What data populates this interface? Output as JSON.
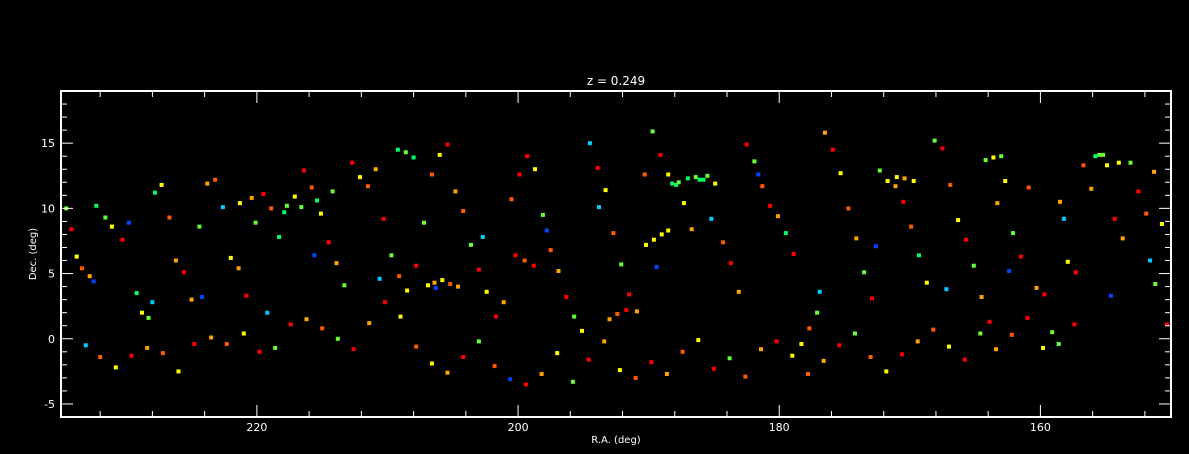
{
  "chart_data": {
    "type": "scatter",
    "title": "z = 0.249",
    "xlabel": "R.A. (deg)",
    "ylabel": "Dec. (deg)",
    "xlim": [
      235,
      150
    ],
    "ylim": [
      -6,
      19
    ],
    "x_ticks": [
      220,
      200,
      180,
      160
    ],
    "x_tick_labels": [
      "220",
      "200",
      "180",
      "160"
    ],
    "y_ticks": [
      -5,
      0,
      5,
      10,
      15
    ],
    "y_tick_labels": [
      "-5",
      "0",
      "5",
      "10",
      "15"
    ],
    "background": "#000000",
    "axis_color": "#ffffff",
    "point_colors": [
      "#ff0000",
      "#ff5a00",
      "#ffa500",
      "#ffff00",
      "#66ff33",
      "#00ff66",
      "#00ccff",
      "#0044ff",
      "#6600cc"
    ],
    "points": [
      [
        234.6,
        10.0,
        4
      ],
      [
        234.2,
        8.4,
        0
      ],
      [
        233.8,
        6.3,
        3
      ],
      [
        233.4,
        5.4,
        1
      ],
      [
        232.8,
        4.8,
        2
      ],
      [
        232.3,
        10.2,
        5
      ],
      [
        231.6,
        9.3,
        4
      ],
      [
        231.1,
        8.6,
        3
      ],
      [
        230.3,
        7.6,
        0
      ],
      [
        229.8,
        8.9,
        7
      ],
      [
        229.2,
        3.5,
        5
      ],
      [
        228.8,
        2.0,
        3
      ],
      [
        228.3,
        1.6,
        4
      ],
      [
        227.8,
        11.2,
        5
      ],
      [
        227.3,
        11.8,
        3
      ],
      [
        226.7,
        9.3,
        1
      ],
      [
        226.2,
        6.0,
        2
      ],
      [
        225.6,
        5.1,
        0
      ],
      [
        225.0,
        3.0,
        2
      ],
      [
        224.4,
        8.6,
        4
      ],
      [
        223.8,
        11.9,
        2
      ],
      [
        223.2,
        12.2,
        1
      ],
      [
        222.6,
        10.1,
        6
      ],
      [
        222.0,
        6.2,
        3
      ],
      [
        221.4,
        5.4,
        2
      ],
      [
        220.8,
        3.3,
        0
      ],
      [
        220.1,
        8.9,
        4
      ],
      [
        219.5,
        11.1,
        0
      ],
      [
        218.9,
        10.0,
        1
      ],
      [
        218.3,
        7.8,
        5
      ],
      [
        217.7,
        10.2,
        4
      ],
      [
        217.1,
        10.9,
        3
      ],
      [
        216.4,
        12.9,
        0
      ],
      [
        215.8,
        11.6,
        1
      ],
      [
        215.1,
        9.6,
        3
      ],
      [
        214.5,
        7.4,
        0
      ],
      [
        213.9,
        5.8,
        2
      ],
      [
        213.3,
        4.1,
        4
      ],
      [
        212.7,
        13.5,
        0
      ],
      [
        212.1,
        12.4,
        3
      ],
      [
        211.5,
        11.7,
        1
      ],
      [
        210.9,
        13.0,
        2
      ],
      [
        210.3,
        9.2,
        0
      ],
      [
        209.7,
        6.4,
        4
      ],
      [
        209.1,
        4.8,
        1
      ],
      [
        208.5,
        3.7,
        3
      ],
      [
        207.8,
        5.6,
        0
      ],
      [
        207.2,
        8.9,
        4
      ],
      [
        206.6,
        12.6,
        1
      ],
      [
        206.0,
        14.1,
        3
      ],
      [
        205.4,
        14.9,
        0
      ],
      [
        204.8,
        11.3,
        2
      ],
      [
        204.2,
        9.8,
        1
      ],
      [
        203.6,
        7.2,
        4
      ],
      [
        203.0,
        5.3,
        0
      ],
      [
        202.4,
        3.6,
        3
      ],
      [
        201.7,
        1.7,
        0
      ],
      [
        201.1,
        2.8,
        2
      ],
      [
        200.5,
        10.7,
        1
      ],
      [
        199.9,
        12.6,
        0
      ],
      [
        199.3,
        14.0,
        0
      ],
      [
        198.7,
        13.0,
        3
      ],
      [
        198.1,
        9.5,
        4
      ],
      [
        197.5,
        6.8,
        1
      ],
      [
        196.9,
        5.2,
        2
      ],
      [
        196.3,
        3.2,
        0
      ],
      [
        195.7,
        1.7,
        4
      ],
      [
        195.1,
        0.6,
        3
      ],
      [
        194.5,
        15.0,
        6
      ],
      [
        193.9,
        13.1,
        0
      ],
      [
        193.3,
        11.4,
        3
      ],
      [
        192.7,
        8.1,
        1
      ],
      [
        192.1,
        5.7,
        4
      ],
      [
        191.5,
        3.4,
        0
      ],
      [
        190.9,
        2.1,
        2
      ],
      [
        190.3,
        12.6,
        1
      ],
      [
        189.7,
        15.9,
        4
      ],
      [
        189.1,
        14.1,
        0
      ],
      [
        188.5,
        12.6,
        3
      ],
      [
        187.9,
        11.8,
        5
      ],
      [
        187.3,
        10.4,
        3
      ],
      [
        186.7,
        8.4,
        2
      ],
      [
        186.1,
        12.2,
        5
      ],
      [
        185.5,
        12.5,
        4
      ],
      [
        184.9,
        11.9,
        3
      ],
      [
        184.3,
        7.4,
        1
      ],
      [
        183.7,
        5.8,
        0
      ],
      [
        183.1,
        3.6,
        2
      ],
      [
        182.5,
        14.9,
        0
      ],
      [
        181.9,
        13.6,
        4
      ],
      [
        181.3,
        11.7,
        1
      ],
      [
        180.7,
        10.2,
        0
      ],
      [
        180.1,
        9.4,
        2
      ],
      [
        179.5,
        8.1,
        5
      ],
      [
        178.9,
        6.5,
        0
      ],
      [
        178.3,
        -0.4,
        3
      ],
      [
        177.7,
        0.8,
        1
      ],
      [
        177.1,
        2.0,
        4
      ],
      [
        176.5,
        15.8,
        2
      ],
      [
        175.9,
        14.5,
        0
      ],
      [
        175.3,
        12.7,
        3
      ],
      [
        174.7,
        10.0,
        1
      ],
      [
        174.1,
        7.7,
        2
      ],
      [
        173.5,
        5.1,
        4
      ],
      [
        172.9,
        3.1,
        0
      ],
      [
        172.3,
        12.9,
        4
      ],
      [
        171.7,
        12.1,
        3
      ],
      [
        171.1,
        11.7,
        2
      ],
      [
        170.5,
        10.5,
        0
      ],
      [
        169.9,
        8.6,
        1
      ],
      [
        169.3,
        6.4,
        5
      ],
      [
        168.7,
        4.3,
        3
      ],
      [
        168.1,
        15.2,
        4
      ],
      [
        167.5,
        14.6,
        0
      ],
      [
        166.9,
        11.8,
        1
      ],
      [
        166.3,
        9.1,
        3
      ],
      [
        165.7,
        7.6,
        0
      ],
      [
        165.1,
        5.6,
        4
      ],
      [
        164.5,
        3.2,
        2
      ],
      [
        163.9,
        1.3,
        0
      ],
      [
        163.3,
        10.4,
        2
      ],
      [
        162.7,
        12.1,
        3
      ],
      [
        162.1,
        8.1,
        4
      ],
      [
        161.5,
        6.3,
        0
      ],
      [
        160.9,
        11.6,
        1
      ],
      [
        160.3,
        3.9,
        2
      ],
      [
        159.7,
        3.4,
        0
      ],
      [
        159.1,
        0.5,
        4
      ],
      [
        158.5,
        10.5,
        2
      ],
      [
        157.9,
        5.9,
        3
      ],
      [
        157.3,
        5.1,
        0
      ],
      [
        156.7,
        13.3,
        1
      ],
      [
        156.1,
        11.5,
        2
      ],
      [
        155.5,
        14.1,
        4
      ],
      [
        154.9,
        13.3,
        3
      ],
      [
        154.3,
        9.2,
        0
      ],
      [
        153.7,
        7.7,
        2
      ],
      [
        153.1,
        13.5,
        4
      ],
      [
        152.5,
        11.3,
        0
      ],
      [
        151.9,
        9.6,
        1
      ],
      [
        151.3,
        12.8,
        2
      ],
      [
        150.7,
        8.8,
        3
      ],
      [
        150.3,
        1.1,
        0
      ],
      [
        151.2,
        4.2,
        4
      ],
      [
        233.1,
        -0.5,
        6
      ],
      [
        232.0,
        -1.4,
        1
      ],
      [
        230.8,
        -2.2,
        3
      ],
      [
        229.6,
        -1.3,
        0
      ],
      [
        228.4,
        -0.7,
        2
      ],
      [
        227.2,
        -1.1,
        1
      ],
      [
        226.0,
        -2.5,
        3
      ],
      [
        224.8,
        -0.4,
        0
      ],
      [
        223.5,
        0.1,
        2
      ],
      [
        222.3,
        -0.4,
        1
      ],
      [
        221.0,
        0.4,
        3
      ],
      [
        219.8,
        -1.0,
        0
      ],
      [
        218.6,
        -0.7,
        4
      ],
      [
        217.4,
        1.1,
        0
      ],
      [
        216.2,
        1.5,
        2
      ],
      [
        215.0,
        0.8,
        1
      ],
      [
        213.8,
        0.0,
        4
      ],
      [
        212.6,
        -0.8,
        0
      ],
      [
        211.4,
        1.2,
        2
      ],
      [
        210.2,
        2.8,
        0
      ],
      [
        209.0,
        1.7,
        3
      ],
      [
        207.8,
        -0.6,
        1
      ],
      [
        206.6,
        -1.9,
        3
      ],
      [
        205.4,
        -2.6,
        2
      ],
      [
        204.2,
        -1.4,
        0
      ],
      [
        203.0,
        -0.2,
        4
      ],
      [
        201.8,
        -2.1,
        1
      ],
      [
        200.6,
        -3.1,
        7
      ],
      [
        199.4,
        -3.5,
        0
      ],
      [
        198.2,
        -2.7,
        2
      ],
      [
        197.0,
        -1.1,
        3
      ],
      [
        195.8,
        -3.3,
        4
      ],
      [
        194.6,
        -1.6,
        0
      ],
      [
        193.4,
        -0.2,
        2
      ],
      [
        192.2,
        -2.4,
        3
      ],
      [
        191.0,
        -3.0,
        1
      ],
      [
        189.8,
        -1.8,
        0
      ],
      [
        188.6,
        -2.7,
        2
      ],
      [
        187.4,
        -1.0,
        1
      ],
      [
        186.2,
        -0.1,
        3
      ],
      [
        185.0,
        -2.3,
        0
      ],
      [
        183.8,
        -1.5,
        4
      ],
      [
        182.6,
        -2.9,
        1
      ],
      [
        181.4,
        -0.8,
        2
      ],
      [
        180.2,
        -0.2,
        0
      ],
      [
        179.0,
        -1.3,
        3
      ],
      [
        177.8,
        -2.7,
        1
      ],
      [
        176.6,
        -1.7,
        2
      ],
      [
        175.4,
        -0.5,
        0
      ],
      [
        174.2,
        0.4,
        4
      ],
      [
        173.0,
        -1.4,
        1
      ],
      [
        171.8,
        -2.5,
        3
      ],
      [
        170.6,
        -1.2,
        0
      ],
      [
        169.4,
        -0.2,
        2
      ],
      [
        168.2,
        0.7,
        1
      ],
      [
        167.0,
        -0.6,
        3
      ],
      [
        165.8,
        -1.6,
        0
      ],
      [
        164.6,
        0.4,
        4
      ],
      [
        163.4,
        -0.8,
        2
      ],
      [
        162.2,
        0.3,
        1
      ],
      [
        161.0,
        1.6,
        0
      ],
      [
        159.8,
        -0.7,
        3
      ],
      [
        158.6,
        -0.4,
        4
      ],
      [
        157.4,
        1.1,
        0
      ],
      [
        232.5,
        4.4,
        7
      ],
      [
        228.0,
        2.8,
        6
      ],
      [
        224.2,
        3.2,
        7
      ],
      [
        219.2,
        2.0,
        6
      ],
      [
        215.6,
        6.4,
        7
      ],
      [
        210.6,
        4.6,
        6
      ],
      [
        206.3,
        3.9,
        7
      ],
      [
        202.7,
        7.8,
        6
      ],
      [
        197.8,
        8.3,
        7
      ],
      [
        193.8,
        10.1,
        6
      ],
      [
        189.4,
        5.5,
        7
      ],
      [
        185.2,
        9.2,
        6
      ],
      [
        181.6,
        12.6,
        7
      ],
      [
        176.9,
        3.6,
        6
      ],
      [
        172.6,
        7.1,
        7
      ],
      [
        167.2,
        3.8,
        6
      ],
      [
        162.4,
        5.2,
        7
      ],
      [
        158.2,
        9.2,
        6
      ],
      [
        154.6,
        3.3,
        7
      ],
      [
        151.6,
        6.0,
        6
      ],
      [
        217.9,
        9.7,
        5
      ],
      [
        216.6,
        10.1,
        4
      ],
      [
        215.4,
        10.6,
        5
      ],
      [
        214.2,
        11.3,
        4
      ],
      [
        188.2,
        11.9,
        5
      ],
      [
        187.7,
        12.0,
        4
      ],
      [
        187.0,
        12.3,
        5
      ],
      [
        186.4,
        12.4,
        4
      ],
      [
        185.8,
        12.2,
        5
      ],
      [
        190.2,
        7.2,
        3
      ],
      [
        189.6,
        7.6,
        3
      ],
      [
        189.0,
        8.0,
        3
      ],
      [
        188.5,
        8.3,
        3
      ],
      [
        209.2,
        14.5,
        5
      ],
      [
        208.6,
        14.3,
        4
      ],
      [
        208.0,
        13.9,
        5
      ],
      [
        221.3,
        10.4,
        3
      ],
      [
        220.4,
        10.8,
        2
      ],
      [
        206.9,
        4.1,
        3
      ],
      [
        206.4,
        4.3,
        2
      ],
      [
        205.8,
        4.5,
        3
      ],
      [
        205.2,
        4.2,
        1
      ],
      [
        204.6,
        4.0,
        2
      ],
      [
        200.2,
        6.4,
        0
      ],
      [
        199.5,
        6.0,
        1
      ],
      [
        198.8,
        5.6,
        0
      ],
      [
        193.0,
        1.5,
        2
      ],
      [
        192.4,
        1.9,
        1
      ],
      [
        191.7,
        2.2,
        0
      ],
      [
        171.0,
        12.4,
        3
      ],
      [
        170.4,
        12.3,
        2
      ],
      [
        169.7,
        12.1,
        3
      ],
      [
        164.2,
        13.7,
        4
      ],
      [
        163.6,
        13.9,
        3
      ],
      [
        163.0,
        14.0,
        4
      ],
      [
        155.8,
        14.0,
        5
      ],
      [
        155.2,
        14.1,
        4
      ],
      [
        154.0,
        13.5,
        3
      ]
    ]
  }
}
